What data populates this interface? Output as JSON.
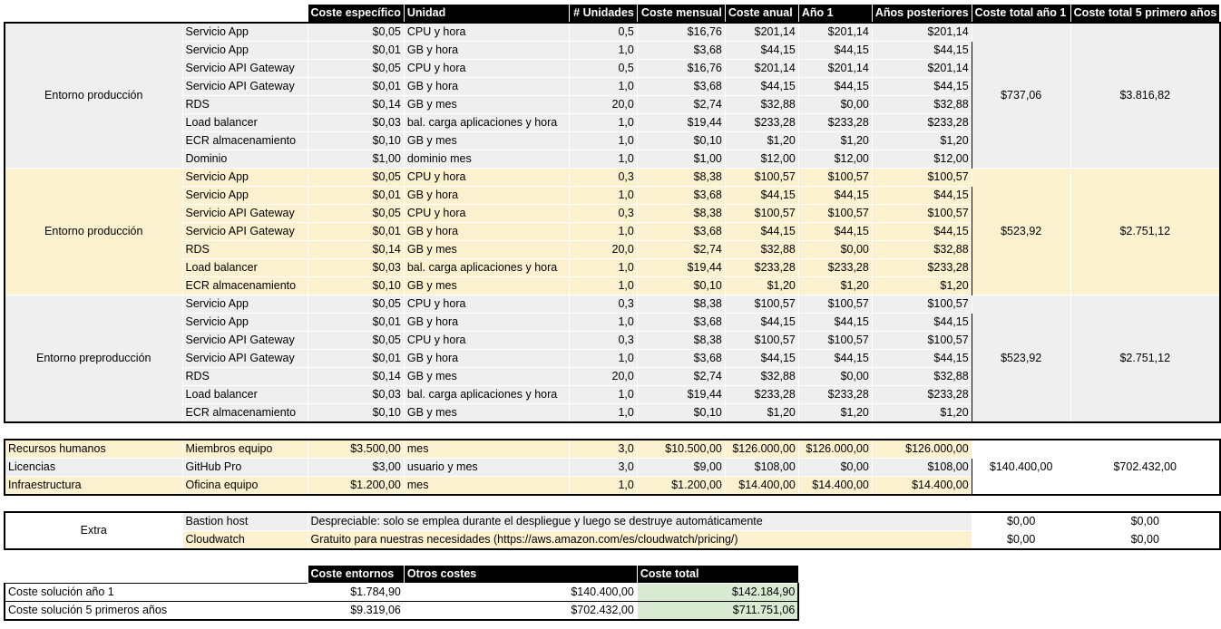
{
  "headers": [
    "Coste específico",
    "Unidad",
    "# Unidades",
    "Coste mensual",
    "Coste anual",
    "Año 1",
    "Años posteriores",
    "Coste total año 1",
    "Coste total 5 primero años"
  ],
  "env_groups": [
    {
      "label": "Entorno producción",
      "shade": "g",
      "total_y1": "$737,06",
      "total_5y": "$3.816,82",
      "rows": [
        [
          "Servicio App",
          "$0,05",
          "CPU y hora",
          "0,5",
          "$16,76",
          "$201,14",
          "$201,14",
          "$201,14"
        ],
        [
          "Servicio App",
          "$0,01",
          "GB y hora",
          "1,0",
          "$3,68",
          "$44,15",
          "$44,15",
          "$44,15"
        ],
        [
          "Servicio API Gateway",
          "$0,05",
          "CPU y hora",
          "0,5",
          "$16,76",
          "$201,14",
          "$201,14",
          "$201,14"
        ],
        [
          "Servicio API Gateway",
          "$0,01",
          "GB y hora",
          "1,0",
          "$3,68",
          "$44,15",
          "$44,15",
          "$44,15"
        ],
        [
          "RDS",
          "$0,14",
          "GB y mes",
          "20,0",
          "$2,74",
          "$32,88",
          "$0,00",
          "$32,88"
        ],
        [
          "Load balancer",
          "$0,03",
          "bal. carga aplicaciones y hora",
          "1,0",
          "$19,44",
          "$233,28",
          "$233,28",
          "$233,28"
        ],
        [
          "ECR almacenamiento",
          "$0,10",
          "GB y mes",
          "1,0",
          "$0,10",
          "$1,20",
          "$1,20",
          "$1,20"
        ],
        [
          "Dominio",
          "$1,00",
          "dominio mes",
          "1,0",
          "$1,00",
          "$12,00",
          "$12,00",
          "$12,00"
        ]
      ]
    },
    {
      "label": "Entorno producción",
      "shade": "y",
      "total_y1": "$523,92",
      "total_5y": "$2.751,12",
      "rows": [
        [
          "Servicio App",
          "$0,05",
          "CPU y hora",
          "0,3",
          "$8,38",
          "$100,57",
          "$100,57",
          "$100,57"
        ],
        [
          "Servicio App",
          "$0,01",
          "GB y hora",
          "1,0",
          "$3,68",
          "$44,15",
          "$44,15",
          "$44,15"
        ],
        [
          "Servicio API Gateway",
          "$0,05",
          "CPU y hora",
          "0,3",
          "$8,38",
          "$100,57",
          "$100,57",
          "$100,57"
        ],
        [
          "Servicio API Gateway",
          "$0,01",
          "GB y hora",
          "1,0",
          "$3,68",
          "$44,15",
          "$44,15",
          "$44,15"
        ],
        [
          "RDS",
          "$0,14",
          "GB y mes",
          "20,0",
          "$2,74",
          "$32,88",
          "$0,00",
          "$32,88"
        ],
        [
          "Load balancer",
          "$0,03",
          "bal. carga aplicaciones y hora",
          "1,0",
          "$19,44",
          "$233,28",
          "$233,28",
          "$233,28"
        ],
        [
          "ECR almacenamiento",
          "$0,10",
          "GB y mes",
          "1,0",
          "$0,10",
          "$1,20",
          "$1,20",
          "$1,20"
        ]
      ]
    },
    {
      "label": "Entorno preproducción",
      "shade": "g",
      "total_y1": "$523,92",
      "total_5y": "$2.751,12",
      "rows": [
        [
          "Servicio App",
          "$0,05",
          "CPU y hora",
          "0,3",
          "$8,38",
          "$100,57",
          "$100,57",
          "$100,57"
        ],
        [
          "Servicio App",
          "$0,01",
          "GB y hora",
          "1,0",
          "$3,68",
          "$44,15",
          "$44,15",
          "$44,15"
        ],
        [
          "Servicio API Gateway",
          "$0,05",
          "CPU y hora",
          "0,3",
          "$8,38",
          "$100,57",
          "$100,57",
          "$100,57"
        ],
        [
          "Servicio API Gateway",
          "$0,01",
          "GB y hora",
          "1,0",
          "$3,68",
          "$44,15",
          "$44,15",
          "$44,15"
        ],
        [
          "RDS",
          "$0,14",
          "GB y mes",
          "20,0",
          "$2,74",
          "$32,88",
          "$0,00",
          "$32,88"
        ],
        [
          "Load balancer",
          "$0,03",
          "bal. carga aplicaciones y hora",
          "1,0",
          "$19,44",
          "$233,28",
          "$233,28",
          "$233,28"
        ],
        [
          "ECR almacenamiento",
          "$0,10",
          "GB y mes",
          "1,0",
          "$0,10",
          "$1,20",
          "$1,20",
          "$1,20"
        ]
      ]
    }
  ],
  "other_costs": {
    "total_y1": "$140.400,00",
    "total_5y": "$702.432,00",
    "rows": [
      {
        "shade": "y",
        "cells": [
          "Recursos humanos",
          "Miembros equipo",
          "$3.500,00",
          "mes",
          "3,0",
          "$10.500,00",
          "$126.000,00",
          "$126.000,00",
          "$126.000,00"
        ]
      },
      {
        "shade": "g",
        "cells": [
          "Licencias",
          "GitHub Pro",
          "$3,00",
          "usuario y mes",
          "3,0",
          "$9,00",
          "$108,00",
          "$0,00",
          "$108,00"
        ]
      },
      {
        "shade": "y",
        "cells": [
          "Infraestructura",
          "Oficina equipo",
          "$1.200,00",
          "mes",
          "1,0",
          "$1.200,00",
          "$14.400,00",
          "$14.400,00",
          "$14.400,00"
        ]
      }
    ]
  },
  "extra": {
    "label": "Extra",
    "rows": [
      {
        "shade": "g",
        "name": "Bastion host",
        "note": "Despreciable: solo se emplea durante el despliegue y luego se destruye automáticamente",
        "y1": "$0,00",
        "y5": "$0,00"
      },
      {
        "shade": "y",
        "name": "Cloudwatch",
        "note": "Gratuito para nuestras necesidades (https://aws.amazon.com/es/cloudwatch/pricing/)",
        "y1": "$0,00",
        "y5": "$0,00"
      }
    ]
  },
  "summary": {
    "headers": [
      "Coste entornos",
      "Otros costes",
      "Coste total"
    ],
    "rows": [
      [
        "Coste solución año 1",
        "$1.784,90",
        "$140.400,00",
        "$142.184,90"
      ],
      [
        "Coste solución 5 primeros años",
        "$9.319,06",
        "$702.432,00",
        "$711.751,06"
      ]
    ]
  }
}
